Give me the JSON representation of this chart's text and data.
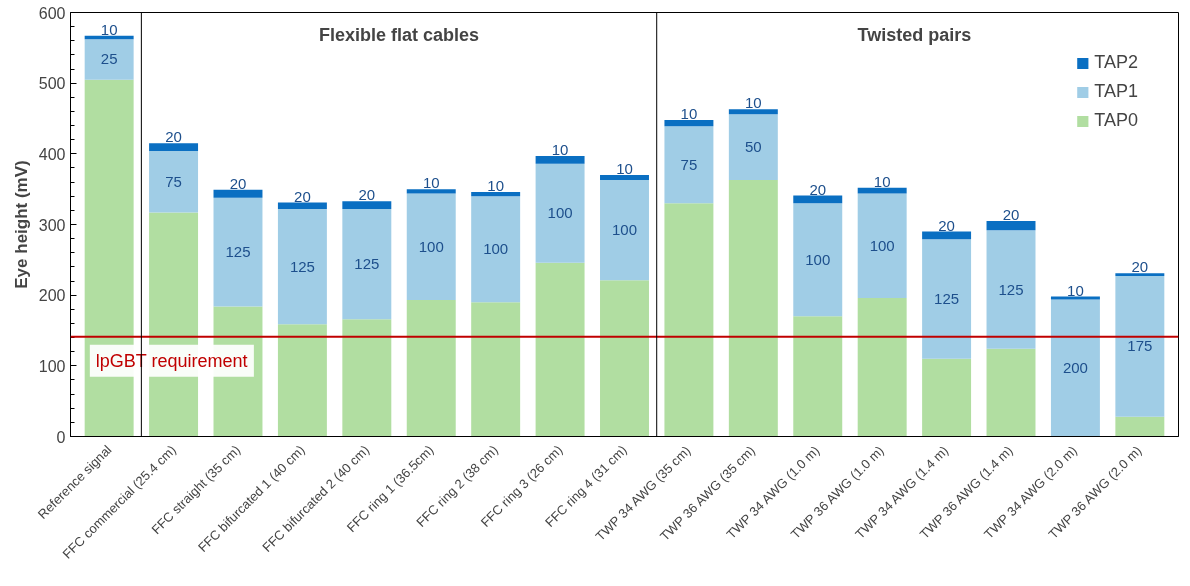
{
  "chart_data": {
    "type": "bar",
    "stacked": true,
    "ylabel": "Eye height (mV)",
    "categories": [
      "Reference signal",
      "FFC commercial (25.4 cm)",
      "FFC straight (35 cm)",
      "FFC bifurcated 1 (40 cm)",
      "FFC bifurcated 2 (40 cm)",
      "FFC ring 1 (36.5cm)",
      "FFC ring 2 (38 cm)",
      "FFC ring 3 (26 cm)",
      "FFC ring 4 (31 cm)",
      "TWP 34 AWG (35 cm)",
      "TWP 36 AWG (35 cm)",
      "TWP 34 AWG (1.0 m)",
      "TWP 36 AWG (1.0 m)",
      "TWP 34 AWG (1.4 m)",
      "TWP 36 AWG (1.4 m)",
      "TWP 34 AWG (2.0 m)",
      "TWP 36 AWG (2.0 m)"
    ],
    "series": [
      {
        "name": "TAP0",
        "color": "#b1dea1",
        "values": [
          505,
          317,
          184,
          159,
          166,
          193,
          190,
          246,
          221,
          330,
          363,
          170,
          196,
          110,
          124,
          0,
          28
        ]
      },
      {
        "name": "TAP1",
        "color": "#a0cde6",
        "values": [
          57,
          87,
          154,
          163,
          156,
          151,
          150,
          140,
          142,
          109,
          93,
          160,
          148,
          169,
          168,
          194,
          199
        ]
      },
      {
        "name": "TAP2",
        "color": "#0a6fc2",
        "values": [
          5,
          11,
          11,
          9,
          11,
          6,
          6,
          11,
          7,
          9,
          7,
          11,
          8,
          11,
          13,
          4,
          4
        ]
      }
    ],
    "ylim": [
      0,
      600
    ],
    "yticks": [
      0,
      100,
      200,
      300,
      400,
      500,
      600
    ],
    "ref_lines": [
      {
        "axis": "y",
        "value": 141,
        "label": "lpGBT requirement",
        "color": "#c00000"
      }
    ],
    "annotations": [
      "25",
      "75",
      "125",
      "125",
      "125",
      "100",
      "100",
      "100",
      "100",
      "75",
      "50",
      "100",
      "100",
      "125",
      "125",
      "200",
      "175",
      "10",
      "20",
      "20",
      "20",
      "20",
      "10",
      "10",
      "10",
      "10",
      "10",
      "10",
      "20",
      "10",
      "20",
      "20",
      "10",
      "20",
      "Flexible flat cables",
      "Twisted pairs"
    ],
    "legend": "top right",
    "grid": false
  }
}
